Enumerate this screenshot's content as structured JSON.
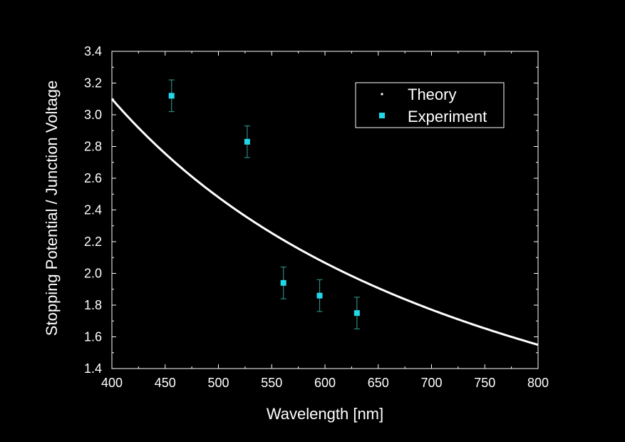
{
  "chart_data": {
    "type": "scatter",
    "xlabel": "Wavelength [nm]",
    "ylabel": "Stopping Potential / Junction Voltage",
    "xlim": [
      400,
      800
    ],
    "ylim": [
      1.4,
      3.4
    ],
    "xticks": [
      "400",
      "450",
      "500",
      "550",
      "600",
      "650",
      "700",
      "750",
      "800"
    ],
    "yticks": [
      "1.4",
      "1.6",
      "1.8",
      "2.0",
      "2.2",
      "2.4",
      "2.6",
      "2.8",
      "3.0",
      "3.2",
      "3.4"
    ],
    "grid": false,
    "legend_position": "top-right",
    "series": [
      {
        "name": "Theory",
        "kind": "line",
        "color": "#ffffff",
        "formula_constant": 1240,
        "x": [
          400,
          450,
          500,
          550,
          600,
          650,
          700,
          750,
          800
        ],
        "y": [
          3.1,
          2.756,
          2.48,
          2.255,
          2.067,
          1.908,
          1.771,
          1.653,
          1.55
        ]
      },
      {
        "name": "Experiment",
        "kind": "scatter",
        "color": "#22d8e8",
        "error_color": "#2a8a80",
        "x": [
          456,
          527,
          561,
          595,
          630
        ],
        "y": [
          3.12,
          2.83,
          1.94,
          1.86,
          1.75
        ],
        "yerr": [
          0.1,
          0.1,
          0.1,
          0.1,
          0.1
        ]
      }
    ]
  }
}
